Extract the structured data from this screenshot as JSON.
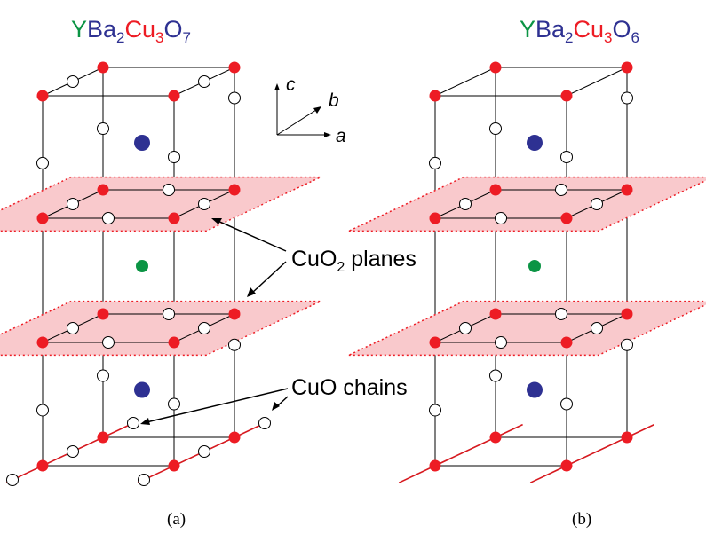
{
  "panel_a": {
    "formula": [
      {
        "text": "Y",
        "sub": "",
        "color": "#0b9444"
      },
      {
        "text": "Ba",
        "sub": "2",
        "color": "#2e3192"
      },
      {
        "text": "Cu",
        "sub": "3",
        "color": "#ed1c24"
      },
      {
        "text": "O",
        "sub": "7",
        "color": "#2e3192"
      }
    ],
    "caption": "(a)"
  },
  "panel_b": {
    "formula": [
      {
        "text": "Y",
        "sub": "",
        "color": "#0b9444"
      },
      {
        "text": "Ba",
        "sub": "2",
        "color": "#2e3192"
      },
      {
        "text": "Cu",
        "sub": "3",
        "color": "#ed1c24"
      },
      {
        "text": "O",
        "sub": "6",
        "color": "#2e3192"
      }
    ],
    "caption": "(b)"
  },
  "axes": {
    "c": "c",
    "b": "b",
    "a": "a"
  },
  "annotations": {
    "planes_main": "CuO",
    "planes_sub": "2",
    "planes_rest": " planes",
    "chains": "CuO chains"
  },
  "colors": {
    "copper": "#ed1c24",
    "barium": "#2e3192",
    "yttrium": "#0b9444",
    "oxygen_fill": "#ffffff",
    "plane_fill": "#f9c9cc",
    "chain_line": "#d7191f"
  }
}
